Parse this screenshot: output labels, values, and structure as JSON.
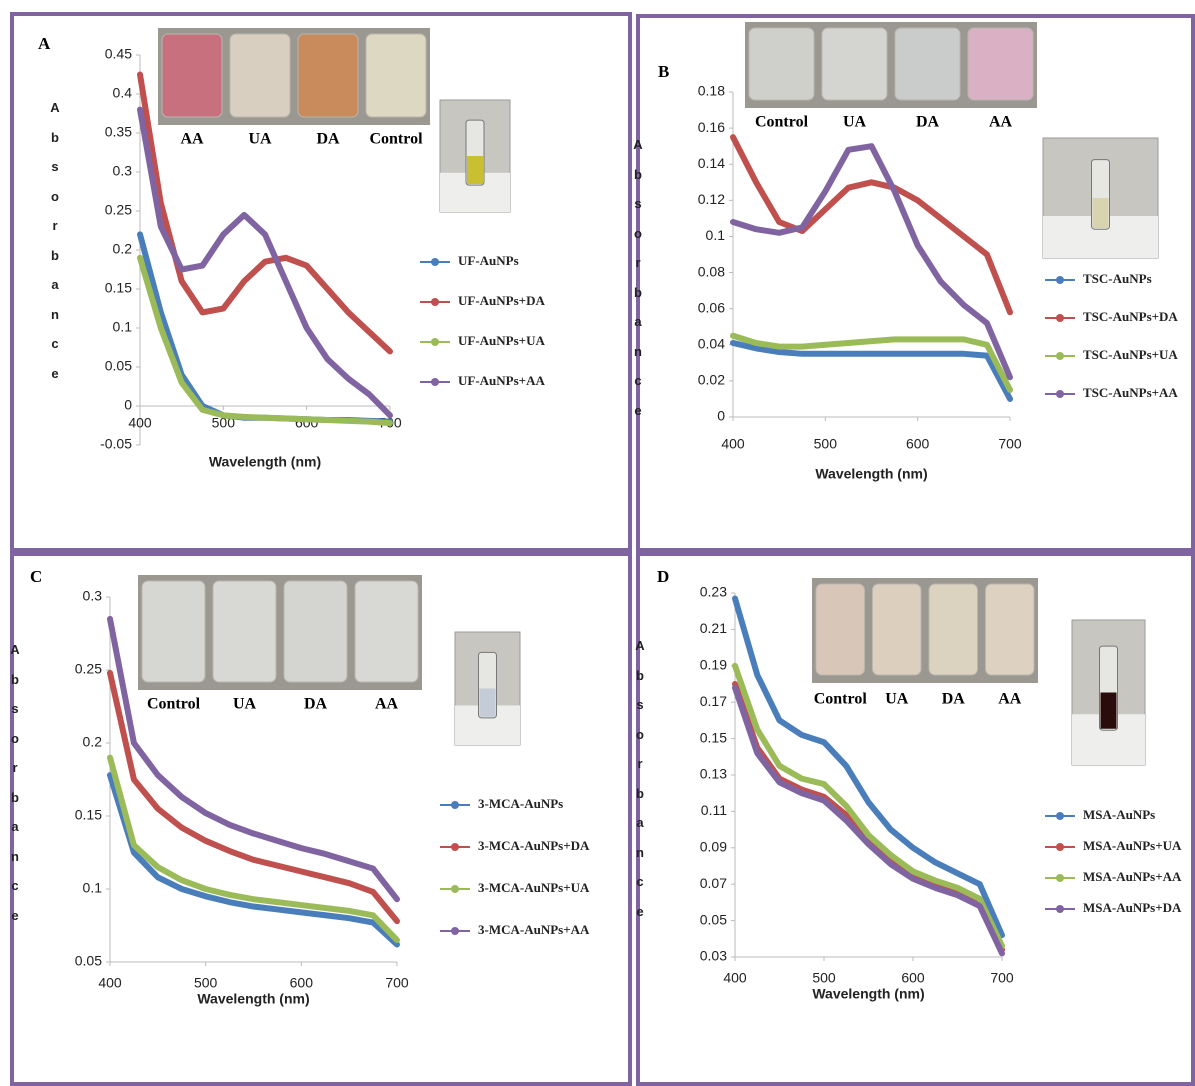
{
  "chart_data": [
    {
      "type": "line",
      "panel_label": "A",
      "x_label": "Wavelength (nm)",
      "y_label": "Absorbance",
      "photo_labels": [
        "AA",
        "UA",
        "DA",
        "Control"
      ],
      "x": [
        400,
        425,
        450,
        475,
        500,
        525,
        550,
        575,
        600,
        625,
        650,
        675,
        700
      ],
      "xlim": [
        400,
        700
      ],
      "xticks": [
        400,
        500,
        600,
        700
      ],
      "ylim": [
        -0.05,
        0.45
      ],
      "yticks": [
        -0.05,
        0,
        0.05,
        0.1,
        0.15,
        0.2,
        0.25,
        0.3,
        0.35,
        0.4,
        0.45
      ],
      "series": [
        {
          "name": "UF-AuNPs",
          "color": "#4a7ebb",
          "values": [
            0.22,
            0.12,
            0.04,
            0.0,
            -0.012,
            -0.015,
            -0.015,
            -0.016,
            -0.017,
            -0.018,
            -0.018,
            -0.019,
            -0.02
          ]
        },
        {
          "name": "UF-AuNPs+DA",
          "color": "#c0504d",
          "values": [
            0.425,
            0.26,
            0.16,
            0.12,
            0.125,
            0.16,
            0.185,
            0.19,
            0.18,
            0.15,
            0.12,
            0.095,
            0.07
          ]
        },
        {
          "name": "UF-AuNPs+UA",
          "color": "#9bbb59",
          "values": [
            0.19,
            0.1,
            0.03,
            -0.005,
            -0.012,
            -0.014,
            -0.015,
            -0.016,
            -0.017,
            -0.018,
            -0.019,
            -0.02,
            -0.022
          ]
        },
        {
          "name": "UF-AuNPs+AA",
          "color": "#8064a2",
          "values": [
            0.38,
            0.23,
            0.175,
            0.18,
            0.22,
            0.245,
            0.22,
            0.16,
            0.1,
            0.06,
            0.035,
            0.015,
            -0.012
          ]
        }
      ]
    },
    {
      "type": "line",
      "panel_label": "B",
      "x_label": "Wavelength (nm)",
      "y_label": "Absorbance",
      "photo_labels": [
        "Control",
        "UA",
        "DA",
        "AA"
      ],
      "x": [
        400,
        425,
        450,
        475,
        500,
        525,
        550,
        575,
        600,
        625,
        650,
        675,
        700
      ],
      "xlim": [
        400,
        700
      ],
      "xticks": [
        400,
        500,
        600,
        700
      ],
      "ylim": [
        0,
        0.18
      ],
      "yticks": [
        0,
        0.02,
        0.04,
        0.06,
        0.08,
        0.1,
        0.12,
        0.14,
        0.16,
        0.18
      ],
      "series": [
        {
          "name": "TSC-AuNPs",
          "color": "#4a7ebb",
          "values": [
            0.041,
            0.038,
            0.036,
            0.035,
            0.035,
            0.035,
            0.035,
            0.035,
            0.035,
            0.035,
            0.035,
            0.034,
            0.01
          ]
        },
        {
          "name": "TSC-AuNPs+DA",
          "color": "#c0504d",
          "values": [
            0.155,
            0.13,
            0.108,
            0.103,
            0.115,
            0.127,
            0.13,
            0.127,
            0.12,
            0.11,
            0.1,
            0.09,
            0.058
          ]
        },
        {
          "name": "TSC-AuNPs+UA",
          "color": "#9bbb59",
          "values": [
            0.045,
            0.041,
            0.039,
            0.039,
            0.04,
            0.041,
            0.042,
            0.043,
            0.043,
            0.043,
            0.043,
            0.04,
            0.015
          ]
        },
        {
          "name": "TSC-AuNPs+AA",
          "color": "#8064a2",
          "values": [
            0.108,
            0.104,
            0.102,
            0.105,
            0.125,
            0.148,
            0.15,
            0.125,
            0.095,
            0.075,
            0.062,
            0.052,
            0.022
          ]
        }
      ]
    },
    {
      "type": "line",
      "panel_label": "C",
      "x_label": "Wavelength (nm)",
      "y_label": "Absorbance",
      "photo_labels": [
        "Control",
        "UA",
        "DA",
        "AA"
      ],
      "x": [
        400,
        425,
        450,
        475,
        500,
        525,
        550,
        575,
        600,
        625,
        650,
        675,
        700
      ],
      "xlim": [
        400,
        700
      ],
      "xticks": [
        400,
        500,
        600,
        700
      ],
      "ylim": [
        0.05,
        0.3
      ],
      "yticks": [
        0.05,
        0.1,
        0.15,
        0.2,
        0.25,
        0.3
      ],
      "series": [
        {
          "name": "3-MCA-AuNPs",
          "color": "#4a7ebb",
          "values": [
            0.178,
            0.125,
            0.108,
            0.1,
            0.095,
            0.091,
            0.088,
            0.086,
            0.084,
            0.082,
            0.08,
            0.077,
            0.062
          ]
        },
        {
          "name": "3-MCA-AuNPs+DA",
          "color": "#c0504d",
          "values": [
            0.248,
            0.175,
            0.155,
            0.142,
            0.133,
            0.126,
            0.12,
            0.116,
            0.112,
            0.108,
            0.104,
            0.098,
            0.078
          ]
        },
        {
          "name": "3-MCA-AuNPs+UA",
          "color": "#9bbb59",
          "values": [
            0.19,
            0.13,
            0.115,
            0.106,
            0.1,
            0.096,
            0.093,
            0.091,
            0.089,
            0.087,
            0.085,
            0.082,
            0.065
          ]
        },
        {
          "name": "3-MCA-AuNPs+AA",
          "color": "#8064a2",
          "values": [
            0.285,
            0.2,
            0.178,
            0.163,
            0.152,
            0.144,
            0.138,
            0.133,
            0.128,
            0.124,
            0.119,
            0.114,
            0.093
          ]
        }
      ]
    },
    {
      "type": "line",
      "panel_label": "D",
      "x_label": "Wavelength (nm)",
      "y_label": "Absorbance",
      "photo_labels": [
        "Control",
        "UA",
        "DA",
        "AA"
      ],
      "x": [
        400,
        425,
        450,
        475,
        500,
        525,
        550,
        575,
        600,
        625,
        650,
        675,
        700
      ],
      "xlim": [
        400,
        700
      ],
      "xticks": [
        400,
        500,
        600,
        700
      ],
      "ylim": [
        0.03,
        0.23
      ],
      "yticks": [
        0.03,
        0.05,
        0.07,
        0.09,
        0.11,
        0.13,
        0.15,
        0.17,
        0.19,
        0.21,
        0.23
      ],
      "series": [
        {
          "name": "MSA-AuNPs",
          "color": "#4a7ebb",
          "values": [
            0.227,
            0.185,
            0.16,
            0.152,
            0.148,
            0.135,
            0.115,
            0.1,
            0.09,
            0.082,
            0.076,
            0.07,
            0.042
          ]
        },
        {
          "name": "MSA-AuNPs+UA",
          "color": "#c0504d",
          "values": [
            0.18,
            0.145,
            0.128,
            0.122,
            0.118,
            0.108,
            0.095,
            0.083,
            0.075,
            0.07,
            0.066,
            0.06,
            0.034
          ]
        },
        {
          "name": "MSA-AuNPs+AA",
          "color": "#9bbb59",
          "values": [
            0.19,
            0.155,
            0.135,
            0.128,
            0.125,
            0.113,
            0.097,
            0.086,
            0.077,
            0.072,
            0.068,
            0.062,
            0.036
          ]
        },
        {
          "name": "MSA-AuNPs+DA",
          "color": "#8064a2",
          "values": [
            0.178,
            0.142,
            0.126,
            0.12,
            0.116,
            0.105,
            0.092,
            0.081,
            0.073,
            0.068,
            0.064,
            0.058,
            0.032
          ]
        }
      ]
    }
  ]
}
